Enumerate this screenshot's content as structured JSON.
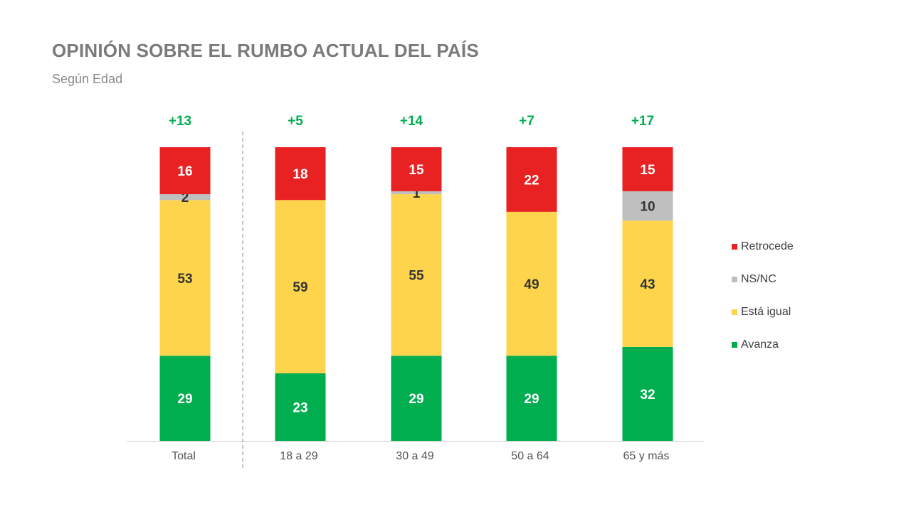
{
  "title": "OPINIÓN SOBRE EL RUMBO ACTUAL DEL PAÍS",
  "subtitle": "Según Edad",
  "colors": {
    "avanza": "#00ad4f",
    "igual": "#fdd44b",
    "nsnc": "#bfbfbf",
    "retrocede": "#e82223",
    "net": "#00ad4f"
  },
  "legend": [
    {
      "label": "Retrocede",
      "color": "#e82223"
    },
    {
      "label": "NS/NC",
      "color": "#bfbfbf"
    },
    {
      "label": "Está igual",
      "color": "#fdd44b"
    },
    {
      "label": "Avanza",
      "color": "#00ad4f"
    }
  ],
  "chart_data": {
    "type": "bar",
    "stacked": true,
    "categories": [
      "Total",
      "18 a 29",
      "30 a 49",
      "50 a 64",
      "65 y más"
    ],
    "series": [
      {
        "name": "Avanza",
        "values": [
          29,
          23,
          29,
          29,
          32
        ]
      },
      {
        "name": "Está igual",
        "values": [
          53,
          59,
          55,
          49,
          43
        ]
      },
      {
        "name": "NS/NC",
        "values": [
          2,
          0,
          1,
          0,
          10
        ]
      },
      {
        "name": "Retrocede",
        "values": [
          16,
          18,
          15,
          22,
          15
        ]
      }
    ],
    "net_labels": [
      "+13",
      "+5",
      "+14",
      "+7",
      "+17"
    ],
    "ylim": [
      0,
      100
    ]
  }
}
